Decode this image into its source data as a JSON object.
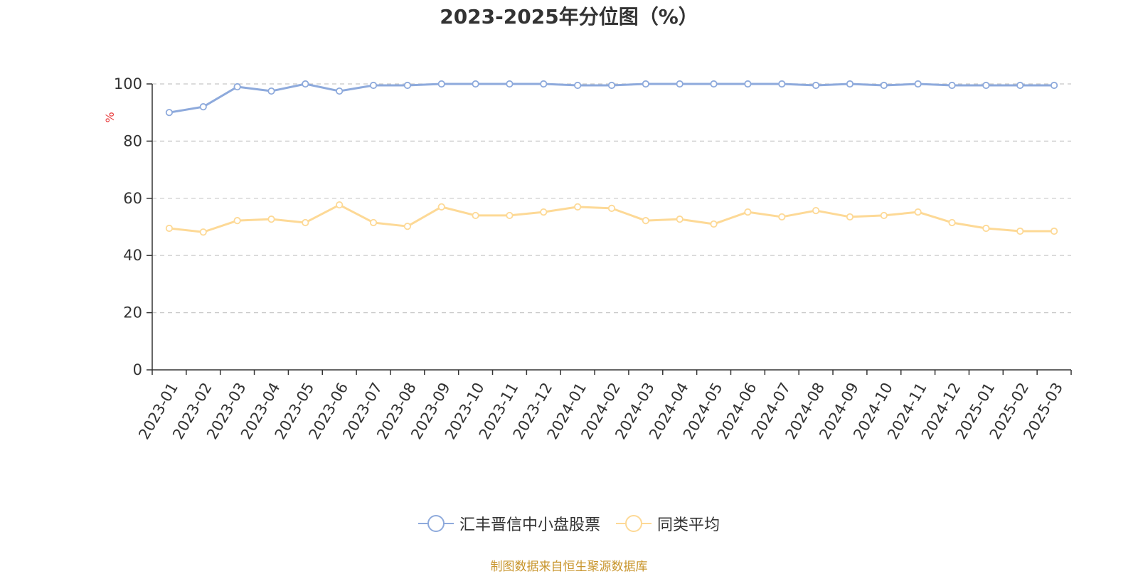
{
  "title": "2023-2025年分位图（%）",
  "source": "制图数据来自恒生聚源数据库",
  "colors": {
    "series_1": "#8eaadc",
    "series_2": "#fdd996",
    "ylabel": "#e8393a"
  },
  "chart_data": {
    "type": "line",
    "title": "2023-2025年分位图（%）",
    "xlabel": "",
    "ylabel": "%",
    "ylim": [
      0,
      100
    ],
    "yticks": [
      0,
      20,
      40,
      60,
      80,
      100
    ],
    "grid": true,
    "legend_position": "bottom",
    "categories": [
      "2023-01",
      "2023-02",
      "2023-03",
      "2023-04",
      "2023-05",
      "2023-06",
      "2023-07",
      "2023-08",
      "2023-09",
      "2023-10",
      "2023-11",
      "2023-12",
      "2024-01",
      "2024-02",
      "2024-03",
      "2024-04",
      "2024-05",
      "2024-06",
      "2024-07",
      "2024-08",
      "2024-09",
      "2024-10",
      "2024-11",
      "2024-12",
      "2025-01",
      "2025-02",
      "2025-03"
    ],
    "series": [
      {
        "name": "汇丰晋信中小盘股票",
        "values": [
          90.0,
          92.0,
          99.0,
          97.5,
          100.0,
          97.5,
          99.5,
          99.5,
          100.0,
          100.0,
          100.0,
          100.0,
          99.5,
          99.5,
          100.0,
          100.0,
          100.0,
          100.0,
          100.0,
          99.5,
          100.0,
          99.5,
          100.0,
          99.5,
          99.5,
          99.5,
          99.5
        ]
      },
      {
        "name": "同类平均",
        "values": [
          49.5,
          48.2,
          52.2,
          52.7,
          51.5,
          57.7,
          51.5,
          50.2,
          57.0,
          54.0,
          54.0,
          55.2,
          57.0,
          56.5,
          52.2,
          52.7,
          51.0,
          55.2,
          53.5,
          55.7,
          53.5,
          54.0,
          55.2,
          51.5,
          49.5,
          48.5,
          48.5
        ]
      }
    ]
  }
}
